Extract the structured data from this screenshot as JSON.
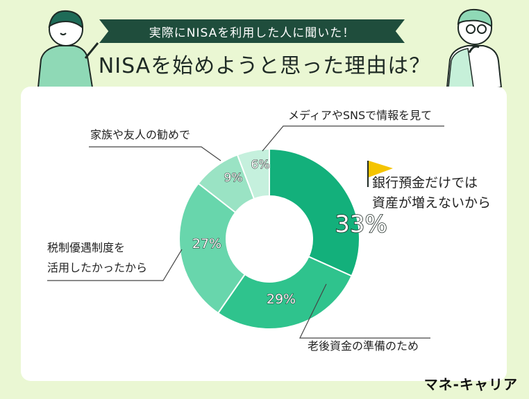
{
  "header": {
    "banner": "実際にNISAを利用した人に聞いた！",
    "title": "NISAを始めようと思った理由は？"
  },
  "brand": "マネ-キャリア",
  "colors": {
    "background": "#eaf7d3",
    "banner": "#1f4d3c",
    "flag": "#f5c400"
  },
  "chart_data": {
    "type": "pie",
    "donut": true,
    "slices": [
      {
        "label_lines": [
          "銀行預金だけでは",
          "資産が増えないから"
        ],
        "value": 33,
        "value_label": "33%",
        "color": "#13b07b"
      },
      {
        "label_lines": [
          "老後資金の準備のため"
        ],
        "value": 29,
        "value_label": "29%",
        "color": "#2fc38d"
      },
      {
        "label_lines": [
          "税制優遇制度を",
          "活用したかったから"
        ],
        "value": 27,
        "value_label": "27%",
        "color": "#68d6ac"
      },
      {
        "label_lines": [
          "家族や友人の勧めで"
        ],
        "value": 9,
        "value_label": "9%",
        "color": "#9ae3c4"
      },
      {
        "label_lines": [
          "メディアやSNSで情報を見て"
        ],
        "value": 6,
        "value_label": "6%",
        "color": "#c5f0dd"
      }
    ]
  }
}
